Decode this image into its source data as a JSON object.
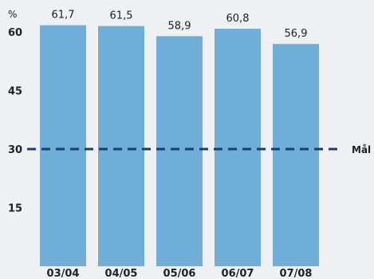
{
  "chart_data": {
    "type": "bar",
    "categories": [
      "03/04",
      "04/05",
      "05/06",
      "06/07",
      "07/08"
    ],
    "values": [
      61.7,
      61.5,
      58.9,
      60.8,
      56.9
    ],
    "data_labels": [
      "61,7",
      "61,5",
      "58,9",
      "60,8",
      "56,9"
    ],
    "y_unit": "%",
    "yticks": [
      "15",
      "30",
      "45",
      "60"
    ],
    "ylim": [
      0,
      68
    ],
    "reference_line": {
      "value": 30,
      "label": "Mål",
      "style": "dashed"
    },
    "grid": false,
    "colors": {
      "bar": "#6eaed8",
      "reference": "#1a3f6f",
      "background": "#eef0f1"
    }
  }
}
